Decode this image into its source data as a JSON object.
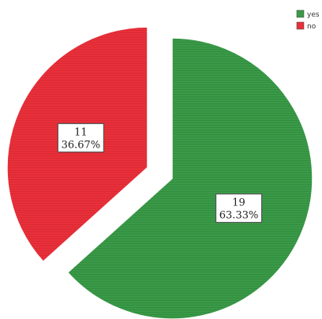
{
  "chart_data": {
    "type": "pie",
    "categories": [
      "yes",
      "no"
    ],
    "values": [
      19,
      11
    ],
    "percent_labels": [
      "63.33%",
      "36.67%"
    ],
    "colors": [
      "#3a9a48",
      "#e8303a"
    ],
    "exploded": [
      "no"
    ],
    "legend": {
      "placement": "top-right",
      "entries": [
        "yes",
        "no"
      ]
    },
    "title": "",
    "xlabel": "",
    "ylabel": ""
  }
}
